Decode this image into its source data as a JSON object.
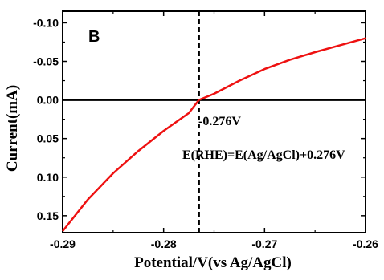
{
  "chart_data": {
    "type": "line",
    "panel_label": "B",
    "xlabel": "Potential/V(vs Ag/AgCl)",
    "ylabel": "Current(mA)",
    "xlim": [
      -0.29,
      -0.26
    ],
    "ylim": [
      0.172,
      -0.115
    ],
    "y_axis_inverted": true,
    "x_ticks": [
      -0.29,
      -0.28,
      -0.27,
      -0.26
    ],
    "x_tick_labels": [
      "-0.29",
      "-0.28",
      "-0.27",
      "-0.26"
    ],
    "y_ticks": [
      -0.1,
      -0.05,
      0.0,
      0.05,
      0.1,
      0.15
    ],
    "y_tick_labels": [
      "-0.10",
      "-0.05",
      "0.00",
      "0.05",
      "0.10",
      "0.15"
    ],
    "grid": false,
    "series": [
      {
        "color": "#ee1111",
        "x": [
          -0.29,
          -0.2875,
          -0.285,
          -0.2825,
          -0.28,
          -0.2775,
          -0.2765,
          -0.275,
          -0.2725,
          -0.27,
          -0.2675,
          -0.265,
          -0.2625,
          -0.26
        ],
        "y": [
          0.17,
          0.129,
          0.095,
          0.066,
          0.04,
          0.017,
          0.0,
          -0.008,
          -0.025,
          -0.04,
          -0.052,
          -0.062,
          -0.071,
          -0.08
        ]
      }
    ],
    "zero_line": {
      "y": 0.0
    },
    "vertical_line": {
      "x": -0.2765,
      "style": "dashed"
    },
    "annotations": [
      {
        "text": "-0.276V"
      },
      {
        "text": "E(RHE)=E(Ag/AgCl)+0.276V"
      }
    ]
  }
}
